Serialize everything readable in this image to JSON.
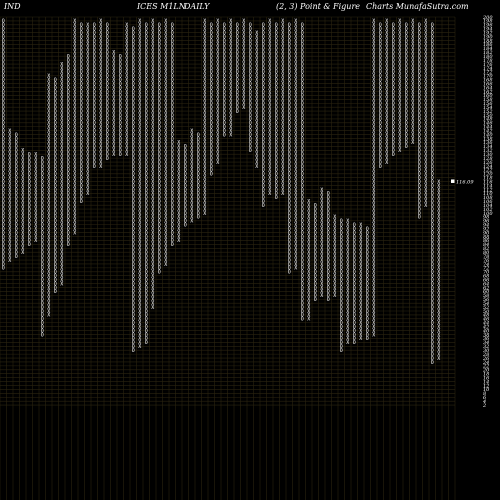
{
  "header": {
    "exchange": "IND",
    "symbol": "ICES M1LN",
    "period": "DAILY",
    "params": "(2, 3) Point & Figure",
    "source": "Charts MunafaSutra.com"
  },
  "chart_data": {
    "type": "point-and-figure",
    "box_size": 2,
    "reversal": 3,
    "y_ticks": [
      200,
      198,
      196,
      194,
      192,
      190,
      188,
      186,
      184,
      182,
      180,
      178,
      176,
      174,
      172,
      170,
      168,
      166,
      164,
      162,
      160,
      158,
      156,
      154,
      152,
      150,
      148,
      146,
      144,
      142,
      140,
      138,
      136,
      134,
      132,
      130,
      128,
      126,
      124,
      122,
      120,
      118,
      116,
      114,
      112,
      110,
      108,
      106,
      104,
      102,
      100,
      98,
      96,
      94,
      92,
      90,
      88,
      86,
      84,
      82,
      80,
      78,
      76,
      74,
      72,
      70,
      68,
      66,
      64,
      62,
      60,
      58,
      56,
      54,
      52,
      50,
      48,
      46,
      44,
      42,
      40,
      38,
      36,
      34,
      32,
      30,
      28,
      26,
      24,
      22,
      20,
      18,
      16,
      14,
      12,
      10,
      8,
      6,
      4,
      2
    ],
    "ylim": [
      0,
      200
    ],
    "last_price": 116.09,
    "last_price_label": "116.09",
    "columns": [
      {
        "type": "O",
        "top": 198,
        "bottom": 72
      },
      {
        "type": "X",
        "top": 142,
        "bottom": 76
      },
      {
        "type": "O",
        "top": 140,
        "bottom": 78
      },
      {
        "type": "X",
        "top": 132,
        "bottom": 80
      },
      {
        "type": "O",
        "top": 130,
        "bottom": 84
      },
      {
        "type": "X",
        "top": 130,
        "bottom": 86
      },
      {
        "type": "O",
        "top": 128,
        "bottom": 38
      },
      {
        "type": "X",
        "top": 170,
        "bottom": 48
      },
      {
        "type": "O",
        "top": 168,
        "bottom": 60
      },
      {
        "type": "X",
        "top": 176,
        "bottom": 64
      },
      {
        "type": "O",
        "top": 180,
        "bottom": 84
      },
      {
        "type": "X",
        "top": 198,
        "bottom": 90
      },
      {
        "type": "O",
        "top": 196,
        "bottom": 106
      },
      {
        "type": "X",
        "top": 196,
        "bottom": 110
      },
      {
        "type": "O",
        "top": 196,
        "bottom": 124
      },
      {
        "type": "X",
        "top": 198,
        "bottom": 124
      },
      {
        "type": "O",
        "top": 196,
        "bottom": 128
      },
      {
        "type": "X",
        "top": 182,
        "bottom": 130
      },
      {
        "type": "O",
        "top": 180,
        "bottom": 130
      },
      {
        "type": "X",
        "top": 196,
        "bottom": 130
      },
      {
        "type": "O",
        "top": 194,
        "bottom": 30
      },
      {
        "type": "X",
        "top": 198,
        "bottom": 32
      },
      {
        "type": "O",
        "top": 196,
        "bottom": 34
      },
      {
        "type": "X",
        "top": 198,
        "bottom": 52
      },
      {
        "type": "O",
        "top": 196,
        "bottom": 70
      },
      {
        "type": "X",
        "top": 198,
        "bottom": 74
      },
      {
        "type": "O",
        "top": 196,
        "bottom": 84
      },
      {
        "type": "X",
        "top": 136,
        "bottom": 86
      },
      {
        "type": "O",
        "top": 134,
        "bottom": 94
      },
      {
        "type": "X",
        "top": 142,
        "bottom": 96
      },
      {
        "type": "O",
        "top": 140,
        "bottom": 98
      },
      {
        "type": "X",
        "top": 198,
        "bottom": 100
      },
      {
        "type": "O",
        "top": 196,
        "bottom": 120
      },
      {
        "type": "X",
        "top": 198,
        "bottom": 126
      },
      {
        "type": "O",
        "top": 196,
        "bottom": 140
      },
      {
        "type": "X",
        "top": 198,
        "bottom": 140
      },
      {
        "type": "O",
        "top": 196,
        "bottom": 152
      },
      {
        "type": "X",
        "top": 198,
        "bottom": 154
      },
      {
        "type": "O",
        "top": 196,
        "bottom": 132
      },
      {
        "type": "X",
        "top": 192,
        "bottom": 124
      },
      {
        "type": "O",
        "top": 196,
        "bottom": 104
      },
      {
        "type": "X",
        "top": 198,
        "bottom": 110
      },
      {
        "type": "O",
        "top": 196,
        "bottom": 108
      },
      {
        "type": "X",
        "top": 198,
        "bottom": 110
      },
      {
        "type": "O",
        "top": 196,
        "bottom": 70
      },
      {
        "type": "X",
        "top": 198,
        "bottom": 72
      },
      {
        "type": "O",
        "top": 196,
        "bottom": 46
      },
      {
        "type": "X",
        "top": 106,
        "bottom": 46
      },
      {
        "type": "O",
        "top": 104,
        "bottom": 56
      },
      {
        "type": "X",
        "top": 112,
        "bottom": 58
      },
      {
        "type": "O",
        "top": 110,
        "bottom": 56
      },
      {
        "type": "X",
        "top": 98,
        "bottom": 58
      },
      {
        "type": "O",
        "top": 96,
        "bottom": 30
      },
      {
        "type": "X",
        "top": 96,
        "bottom": 34
      },
      {
        "type": "O",
        "top": 94,
        "bottom": 34
      },
      {
        "type": "X",
        "top": 94,
        "bottom": 36
      },
      {
        "type": "O",
        "top": 92,
        "bottom": 36
      },
      {
        "type": "X",
        "top": 198,
        "bottom": 38
      },
      {
        "type": "O",
        "top": 196,
        "bottom": 124
      },
      {
        "type": "X",
        "top": 198,
        "bottom": 126
      },
      {
        "type": "O",
        "top": 196,
        "bottom": 130
      },
      {
        "type": "X",
        "top": 198,
        "bottom": 132
      },
      {
        "type": "O",
        "top": 196,
        "bottom": 134
      },
      {
        "type": "X",
        "top": 198,
        "bottom": 136
      },
      {
        "type": "O",
        "top": 196,
        "bottom": 98
      },
      {
        "type": "X",
        "top": 198,
        "bottom": 104
      },
      {
        "type": "O",
        "top": 196,
        "bottom": 24
      },
      {
        "type": "X",
        "top": 116,
        "bottom": 26
      }
    ]
  }
}
